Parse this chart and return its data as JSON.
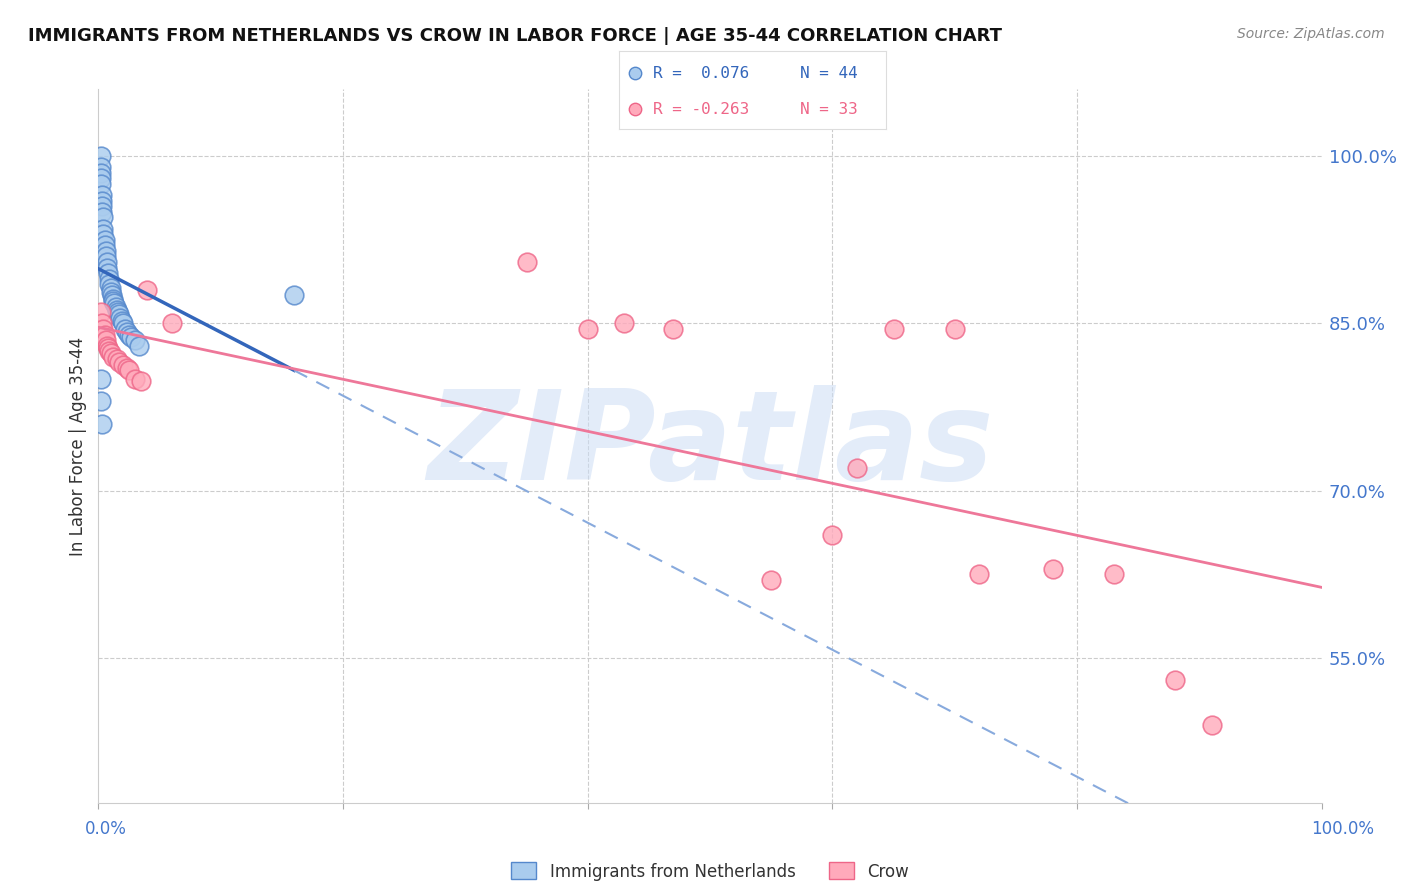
{
  "title": "IMMIGRANTS FROM NETHERLANDS VS CROW IN LABOR FORCE | AGE 35-44 CORRELATION CHART",
  "source": "Source: ZipAtlas.com",
  "ylabel": "In Labor Force | Age 35-44",
  "yticks": [
    0.55,
    0.7,
    0.85,
    1.0
  ],
  "ytick_labels": [
    "55.0%",
    "70.0%",
    "85.0%",
    "100.0%"
  ],
  "legend_blue_r": "R =  0.076",
  "legend_blue_n": "N = 44",
  "legend_pink_r": "R = -0.263",
  "legend_pink_n": "N = 33",
  "blue_scatter_color": "#aaccee",
  "blue_edge_color": "#5588cc",
  "pink_scatter_color": "#ffaabb",
  "pink_edge_color": "#ee6688",
  "blue_line_color": "#3366bb",
  "blue_dash_color": "#88aadd",
  "pink_line_color": "#ee7799",
  "watermark": "ZIPatlas",
  "watermark_color": "#ccddf5",
  "background_color": "#ffffff",
  "xlim": [
    0.0,
    1.0
  ],
  "ylim": [
    0.42,
    1.06
  ],
  "blue_x": [
    0.002,
    0.002,
    0.002,
    0.002,
    0.002,
    0.003,
    0.003,
    0.003,
    0.003,
    0.004,
    0.004,
    0.004,
    0.005,
    0.005,
    0.006,
    0.006,
    0.007,
    0.007,
    0.008,
    0.009,
    0.009,
    0.01,
    0.01,
    0.011,
    0.012,
    0.012,
    0.013,
    0.014,
    0.015,
    0.016,
    0.017,
    0.018,
    0.019,
    0.02,
    0.022,
    0.023,
    0.025,
    0.027,
    0.03,
    0.033,
    0.002,
    0.002,
    0.003,
    0.16
  ],
  "blue_y": [
    1.0,
    0.99,
    0.985,
    0.98,
    0.975,
    0.965,
    0.96,
    0.955,
    0.95,
    0.945,
    0.935,
    0.93,
    0.925,
    0.92,
    0.915,
    0.91,
    0.905,
    0.9,
    0.895,
    0.89,
    0.885,
    0.882,
    0.878,
    0.875,
    0.872,
    0.87,
    0.868,
    0.865,
    0.862,
    0.86,
    0.858,
    0.855,
    0.852,
    0.85,
    0.845,
    0.842,
    0.84,
    0.838,
    0.835,
    0.83,
    0.8,
    0.78,
    0.76,
    0.875
  ],
  "pink_x": [
    0.002,
    0.003,
    0.004,
    0.005,
    0.006,
    0.007,
    0.008,
    0.009,
    0.01,
    0.012,
    0.015,
    0.017,
    0.02,
    0.023,
    0.025,
    0.03,
    0.035,
    0.04,
    0.06,
    0.35,
    0.4,
    0.43,
    0.47,
    0.55,
    0.6,
    0.62,
    0.65,
    0.7,
    0.72,
    0.78,
    0.83,
    0.88,
    0.91
  ],
  "pink_y": [
    0.86,
    0.85,
    0.845,
    0.84,
    0.835,
    0.83,
    0.828,
    0.825,
    0.823,
    0.82,
    0.818,
    0.815,
    0.813,
    0.81,
    0.808,
    0.8,
    0.798,
    0.88,
    0.85,
    0.905,
    0.845,
    0.85,
    0.845,
    0.62,
    0.66,
    0.72,
    0.845,
    0.845,
    0.625,
    0.63,
    0.625,
    0.53,
    0.49
  ],
  "grid_yticks": [
    0.55,
    0.7,
    0.85,
    1.0
  ],
  "grid_xticks": [
    0.2,
    0.4,
    0.6,
    0.8
  ]
}
